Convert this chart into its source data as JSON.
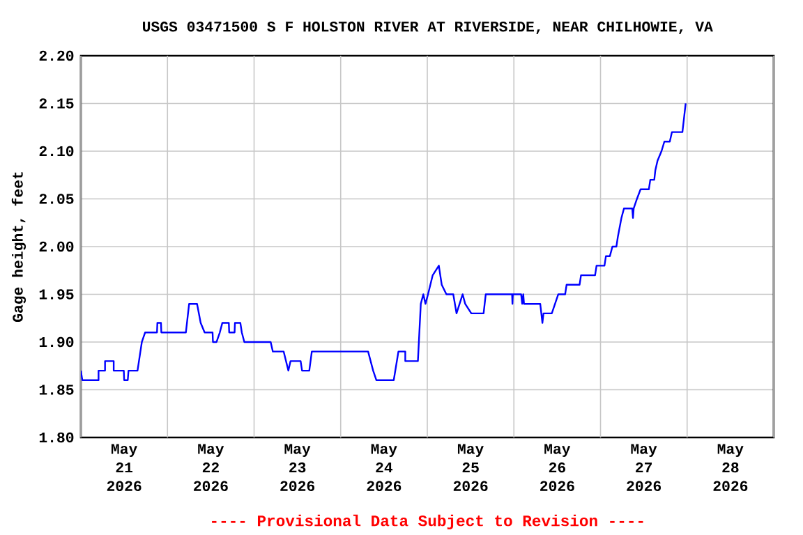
{
  "chart_data": {
    "type": "line",
    "title": "USGS 03471500 S F HOLSTON RIVER AT RIVERSIDE, NEAR CHILHOWIE, VA",
    "ylabel": "Gage height, feet",
    "annotations": [
      "---- Provisional Data Subject to Revision ----"
    ],
    "xlim": [
      "2026-05-21T00:00",
      "2026-05-29T00:00"
    ],
    "xticks": [
      {
        "value": "2026-05-21T00:00",
        "label": null
      },
      {
        "value": "2026-05-21T12:00",
        "label": "May 21 2026"
      },
      {
        "value": "2026-05-22T00:00",
        "label": null
      },
      {
        "value": "2026-05-22T12:00",
        "label": "May 22 2026"
      },
      {
        "value": "2026-05-23T00:00",
        "label": null
      },
      {
        "value": "2026-05-23T12:00",
        "label": "May 23 2026"
      },
      {
        "value": "2026-05-24T00:00",
        "label": null
      },
      {
        "value": "2026-05-24T12:00",
        "label": "May 24 2026"
      },
      {
        "value": "2026-05-25T00:00",
        "label": null
      },
      {
        "value": "2026-05-25T12:00",
        "label": "May 25 2026"
      },
      {
        "value": "2026-05-26T00:00",
        "label": null
      },
      {
        "value": "2026-05-26T12:00",
        "label": "May 26 2026"
      },
      {
        "value": "2026-05-27T00:00",
        "label": null
      },
      {
        "value": "2026-05-27T12:00",
        "label": "May 27 2026"
      },
      {
        "value": "2026-05-28T00:00",
        "label": null
      },
      {
        "value": "2026-05-28T12:00",
        "label": "May 28 2026"
      },
      {
        "value": "2026-05-29T00:00",
        "label": null
      }
    ],
    "ylim": [
      1.8,
      2.2
    ],
    "yticks": [
      {
        "value": 1.8,
        "label": "1.80"
      },
      {
        "value": 1.85,
        "label": "1.85"
      },
      {
        "value": 1.9,
        "label": "1.90"
      },
      {
        "value": 1.95,
        "label": "1.95"
      },
      {
        "value": 2.0,
        "label": "2.00"
      },
      {
        "value": 2.05,
        "label": "2.05"
      },
      {
        "value": 2.1,
        "label": "2.10"
      },
      {
        "value": 2.15,
        "label": "2.15"
      },
      {
        "value": 2.2,
        "label": "2.20"
      }
    ],
    "grid": true,
    "line_style": "solid",
    "series": [
      {
        "color": "#0000ff",
        "x": [
          "2026-05-21T00:00",
          "2026-05-21T00:24",
          "2026-05-21T04:54",
          "2026-05-21T04:54",
          "2026-05-21T06:42",
          "2026-05-21T06:42",
          "2026-05-21T09:06",
          "2026-05-21T09:06",
          "2026-05-21T11:54",
          "2026-05-21T12:00",
          "2026-05-21T13:00",
          "2026-05-21T13:12",
          "2026-05-21T15:42",
          "2026-05-21T16:30",
          "2026-05-21T16:54",
          "2026-05-21T17:48",
          "2026-05-21T21:06",
          "2026-05-21T21:12",
          "2026-05-21T22:12",
          "2026-05-21T22:18",
          "2026-05-22T05:06",
          "2026-05-22T06:00",
          "2026-05-22T08:12",
          "2026-05-22T09:12",
          "2026-05-22T10:18",
          "2026-05-22T12:30",
          "2026-05-22T12:36",
          "2026-05-22T13:36",
          "2026-05-22T14:30",
          "2026-05-22T15:12",
          "2026-05-22T17:00",
          "2026-05-22T17:06",
          "2026-05-22T18:36",
          "2026-05-22T18:42",
          "2026-05-22T20:12",
          "2026-05-22T20:36",
          "2026-05-22T21:18",
          "2026-05-23T04:36",
          "2026-05-23T05:12",
          "2026-05-23T08:12",
          "2026-05-23T09:30",
          "2026-05-23T10:06",
          "2026-05-23T12:54",
          "2026-05-23T13:18",
          "2026-05-23T15:18",
          "2026-05-23T16:00",
          "2026-05-24T07:36",
          "2026-05-24T09:00",
          "2026-05-24T09:54",
          "2026-05-24T14:42",
          "2026-05-24T16:00",
          "2026-05-24T17:54",
          "2026-05-24T17:54",
          "2026-05-24T21:24",
          "2026-05-24T22:12",
          "2026-05-24T22:54",
          "2026-05-24T23:30",
          "2026-05-25T00:12",
          "2026-05-25T01:30",
          "2026-05-25T03:12",
          "2026-05-25T04:00",
          "2026-05-25T05:18",
          "2026-05-25T07:12",
          "2026-05-25T08:06",
          "2026-05-25T09:48",
          "2026-05-25T10:30",
          "2026-05-25T12:12",
          "2026-05-25T15:36",
          "2026-05-25T16:12",
          "2026-05-25T23:30",
          "2026-05-25T23:36",
          "2026-05-25T23:42",
          "2026-05-26T02:00",
          "2026-05-26T02:18",
          "2026-05-26T02:36",
          "2026-05-26T02:48",
          "2026-05-26T07:18",
          "2026-05-26T07:36",
          "2026-05-26T07:54",
          "2026-05-26T08:12",
          "2026-05-26T10:30",
          "2026-05-26T12:18",
          "2026-05-26T14:12",
          "2026-05-26T14:36",
          "2026-05-26T18:12",
          "2026-05-26T18:36",
          "2026-05-26T22:30",
          "2026-05-26T22:54",
          "2026-05-27T01:06",
          "2026-05-27T01:30",
          "2026-05-27T02:36",
          "2026-05-27T03:18",
          "2026-05-27T04:24",
          "2026-05-27T04:48",
          "2026-05-27T05:18",
          "2026-05-27T05:48",
          "2026-05-27T06:30",
          "2026-05-27T08:48",
          "2026-05-27T09:00",
          "2026-05-27T09:12",
          "2026-05-27T10:06",
          "2026-05-27T11:06",
          "2026-05-27T13:24",
          "2026-05-27T13:48",
          "2026-05-27T14:54",
          "2026-05-27T15:12",
          "2026-05-27T15:48",
          "2026-05-27T16:54",
          "2026-05-27T17:42",
          "2026-05-27T19:12",
          "2026-05-27T19:48",
          "2026-05-27T22:42",
          "2026-05-27T23:00",
          "2026-05-27T23:18",
          "2026-05-27T23:36"
        ],
        "values": [
          1.87,
          1.86,
          1.86,
          1.87,
          1.87,
          1.88,
          1.88,
          1.87,
          1.87,
          1.86,
          1.86,
          1.87,
          1.87,
          1.89,
          1.9,
          1.91,
          1.91,
          1.92,
          1.92,
          1.91,
          1.91,
          1.94,
          1.94,
          1.92,
          1.91,
          1.91,
          1.9,
          1.9,
          1.91,
          1.92,
          1.92,
          1.91,
          1.91,
          1.92,
          1.92,
          1.91,
          1.9,
          1.9,
          1.89,
          1.89,
          1.87,
          1.88,
          1.88,
          1.87,
          1.87,
          1.89,
          1.89,
          1.87,
          1.86,
          1.86,
          1.89,
          1.89,
          1.88,
          1.88,
          1.94,
          1.95,
          1.94,
          1.95,
          1.97,
          1.98,
          1.96,
          1.95,
          1.95,
          1.93,
          1.95,
          1.94,
          1.93,
          1.93,
          1.95,
          1.95,
          1.94,
          1.95,
          1.95,
          1.94,
          1.95,
          1.94,
          1.94,
          1.93,
          1.92,
          1.93,
          1.93,
          1.95,
          1.95,
          1.96,
          1.96,
          1.97,
          1.97,
          1.98,
          1.98,
          1.99,
          1.99,
          2.0,
          2.0,
          2.01,
          2.02,
          2.03,
          2.04,
          2.04,
          2.03,
          2.04,
          2.05,
          2.06,
          2.06,
          2.07,
          2.07,
          2.08,
          2.09,
          2.1,
          2.11,
          2.11,
          2.12,
          2.12,
          2.13,
          2.14,
          2.15
        ]
      }
    ]
  }
}
